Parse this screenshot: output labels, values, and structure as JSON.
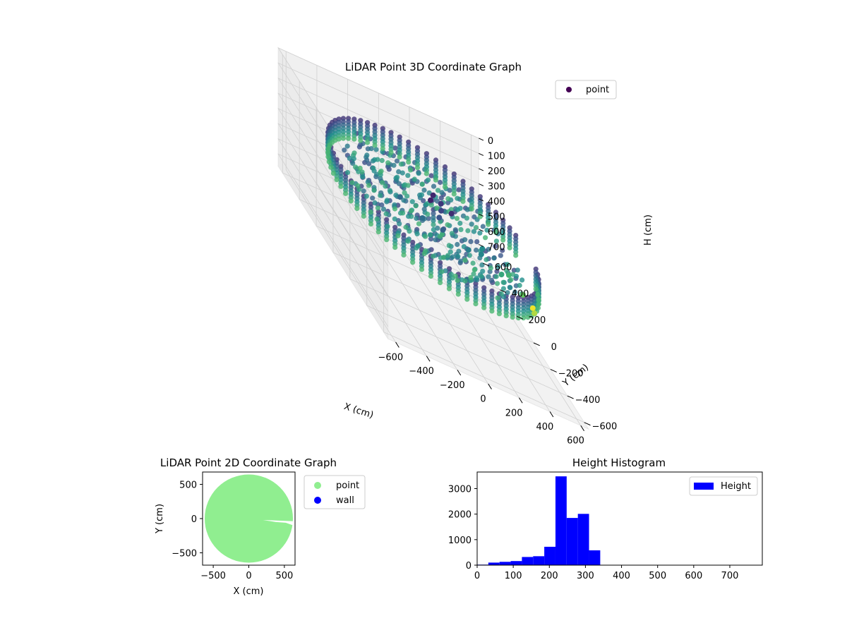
{
  "chart_data": [
    {
      "type": "scatter",
      "projection": "3d",
      "title": "LiDAR Point 3D Coordinate Graph",
      "xlabel": "X (cm)",
      "ylabel": "Y (cm)",
      "zlabel": "H (cm)",
      "xlim": [
        -650,
        650
      ],
      "ylim": [
        -650,
        650
      ],
      "zlim": [
        780,
        0
      ],
      "z_inverted": true,
      "xticks": [
        -600,
        -400,
        -200,
        0,
        200,
        400,
        600
      ],
      "yticks": [
        600,
        400,
        200,
        0,
        -200,
        -400,
        -600
      ],
      "zticks": [
        0,
        100,
        200,
        300,
        400,
        500,
        600,
        700
      ],
      "xtick_labels": [
        "−600",
        "−400",
        "−200",
        "0",
        "200",
        "400",
        "600"
      ],
      "ytick_labels": [
        "600",
        "400",
        "200",
        "0",
        "−200",
        "−400",
        "−600"
      ],
      "ztick_labels": [
        "0",
        "100",
        "200",
        "300",
        "400",
        "500",
        "600",
        "700"
      ],
      "colormap": "viridis",
      "legend": {
        "position": "upper-right",
        "entries": [
          {
            "label": "point",
            "color": "#440154"
          }
        ]
      },
      "grid": true,
      "ring": {
        "radius": 600,
        "h_min": 190,
        "h_max": 340,
        "gap_angle_deg": [
          -15,
          10
        ]
      },
      "sample_points": [
        [
          20,
          70,
          190
        ],
        [
          80,
          150,
          200
        ],
        [
          120,
          130,
          220
        ],
        [
          100,
          90,
          240
        ],
        [
          60,
          40,
          260
        ],
        [
          150,
          60,
          210
        ],
        [
          40,
          -40,
          280
        ],
        [
          -60,
          20,
          300
        ],
        [
          -150,
          120,
          290
        ],
        [
          200,
          -50,
          330
        ],
        [
          300,
          -20,
          340
        ],
        [
          350,
          60,
          350
        ],
        [
          420,
          -40,
          400
        ],
        [
          500,
          20,
          420
        ],
        [
          560,
          -40,
          470
        ],
        [
          600,
          -100,
          520
        ],
        [
          650,
          10,
          560
        ]
      ]
    },
    {
      "type": "scatter",
      "title": "LiDAR Point 2D Coordinate Graph",
      "xlabel": "X (cm)",
      "ylabel": "Y (cm)",
      "xlim": [
        -650,
        650
      ],
      "ylim": [
        -680,
        680
      ],
      "xticks": [
        -500,
        0,
        500
      ],
      "yticks": [
        500,
        0,
        -500
      ],
      "xtick_labels": [
        "−500",
        "0",
        "500"
      ],
      "ytick_labels": [
        "500",
        "0",
        "−500"
      ],
      "disc_radius": 620,
      "colors": {
        "point": "#90ee90",
        "wall": "#0000ff"
      },
      "legend": {
        "position": "outside-right",
        "entries": [
          {
            "label": "point",
            "color": "#90ee90"
          },
          {
            "label": "wall",
            "color": "#0000ff"
          }
        ]
      }
    },
    {
      "type": "bar",
      "subtype": "histogram",
      "title": "Height Histogram",
      "xlim": [
        0,
        790
      ],
      "ylim": [
        0,
        3650
      ],
      "xticks": [
        0,
        100,
        200,
        300,
        400,
        500,
        600,
        700
      ],
      "yticks": [
        0,
        1000,
        2000,
        3000
      ],
      "bin_edges": [
        0,
        31,
        62,
        93,
        124,
        155,
        186,
        217,
        248,
        279,
        310,
        341,
        372,
        403,
        434,
        465,
        496,
        527,
        558,
        589,
        620,
        651,
        682,
        713,
        744,
        775
      ],
      "values": [
        20,
        100,
        130,
        160,
        320,
        350,
        720,
        3480,
        1850,
        2010,
        580,
        5,
        3,
        2,
        2,
        1,
        1,
        1,
        1,
        1,
        1,
        1,
        1,
        1,
        1
      ],
      "series": [
        {
          "name": "Height",
          "color": "#0000ff"
        }
      ],
      "legend": {
        "position": "upper-right",
        "entries": [
          {
            "label": "Height",
            "color": "#0000ff"
          }
        ]
      }
    }
  ]
}
